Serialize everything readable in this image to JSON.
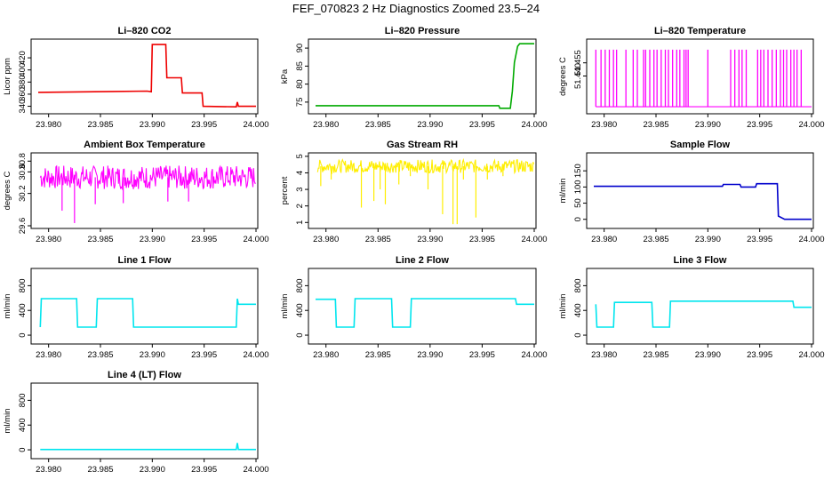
{
  "title": "FEF_070823  2 Hz Diagnostics Zoomed 23.5–24",
  "chart_data": [
    {
      "type": "line",
      "title": "Li–820 CO2",
      "ylabel": "Licor ppm",
      "color": "#ee0000",
      "xlim": [
        23.979,
        24.0
      ],
      "xticks": [
        "23.980",
        "23.985",
        "23.990",
        "23.995",
        "24.000"
      ],
      "ylim": [
        332,
        448
      ],
      "yticks": [
        "340",
        "360",
        "380",
        "400",
        "420"
      ],
      "ytick_values": [
        340,
        360,
        380,
        400,
        420
      ],
      "x": [
        23.979,
        23.9895,
        23.9899,
        23.99,
        23.9913,
        23.9914,
        23.9928,
        23.9929,
        23.9948,
        23.9949,
        23.9981,
        23.9982,
        23.9983,
        24.0
      ],
      "y": [
        363,
        365,
        364,
        442,
        442,
        387,
        387,
        362,
        362,
        340,
        339,
        347,
        340,
        340
      ]
    },
    {
      "type": "line",
      "title": "Li–820 Pressure",
      "ylabel": "kPa",
      "color": "#00aa00",
      "xlim": [
        23.979,
        24.0
      ],
      "xticks": [
        "23.980",
        "23.985",
        "23.990",
        "23.995",
        "24.000"
      ],
      "ylim": [
        72.5,
        92
      ],
      "yticks": [
        "75",
        "80",
        "85",
        "90"
      ],
      "ytick_values": [
        75,
        80,
        85,
        90
      ],
      "x": [
        23.979,
        23.9966,
        23.9967,
        23.9977,
        23.9979,
        23.9981,
        23.9984,
        23.9986,
        24.0
      ],
      "y": [
        74.0,
        74.0,
        73.3,
        73.3,
        78.0,
        86.0,
        90.5,
        91.2,
        91.2
      ]
    },
    {
      "type": "line",
      "title": "Li–820 Temperature",
      "ylabel": "degrees C",
      "color": "#ff00ff",
      "xlim": [
        23.979,
        24.0
      ],
      "xticks": [
        "23.980",
        "23.985",
        "23.990",
        "23.995",
        "24.000"
      ],
      "ylim": [
        51.4,
        51.48
      ],
      "yticks": [
        "51.440",
        "51.455"
      ],
      "ytick_values": [
        51.44,
        51.455
      ],
      "low": 51.405,
      "high": 51.47,
      "spikes": [
        23.9792,
        23.9797,
        23.9801,
        23.9805,
        23.9809,
        23.9812,
        23.9821,
        23.9828,
        23.9832,
        23.9838,
        23.984,
        23.9844,
        23.9848,
        23.9851,
        23.9855,
        23.9859,
        23.9862,
        23.9866,
        23.987,
        23.9873,
        23.9877,
        23.9879,
        23.9881,
        23.99,
        23.9922,
        23.9926,
        23.993,
        23.9933,
        23.9937,
        23.9948,
        23.9951,
        23.9954,
        23.9958,
        23.9962,
        23.9966,
        23.997,
        23.9973,
        23.9976,
        23.998,
        23.9983,
        23.9986,
        23.999
      ]
    },
    {
      "type": "line",
      "title": "Ambient Box Temperature",
      "ylabel": "degrees C",
      "color": "#ff00ff",
      "xlim": [
        23.979,
        24.0
      ],
      "xticks": [
        "23.980",
        "23.985",
        "23.990",
        "23.995",
        "24.000"
      ],
      "ylim": [
        29.6,
        30.92
      ],
      "yticks": [
        "29.6",
        "30.2",
        "30.6"
      ],
      "ytick_values": [
        29.6,
        30.2,
        30.6
      ],
      "extra_tick_label": "30.8",
      "band": [
        30.28,
        30.72
      ],
      "dips": [
        [
          23.9813,
          29.88
        ],
        [
          23.9825,
          29.65
        ],
        [
          23.9845,
          30.0
        ],
        [
          23.9872,
          30.02
        ],
        [
          23.9915,
          30.05
        ],
        [
          23.9935,
          30.05
        ]
      ]
    },
    {
      "type": "line",
      "title": "Gas Stream RH",
      "ylabel": "percent",
      "color": "#ffee00",
      "xlim": [
        23.979,
        24.0
      ],
      "xticks": [
        "23.980",
        "23.985",
        "23.990",
        "23.995",
        "24.000"
      ],
      "ylim": [
        0.8,
        5.1
      ],
      "yticks": [
        "1",
        "2",
        "3",
        "4",
        "5"
      ],
      "ytick_values": [
        1,
        2,
        3,
        4,
        5
      ],
      "band": [
        4.0,
        4.8
      ],
      "dips": [
        [
          23.9795,
          3.2
        ],
        [
          23.9805,
          3.6
        ],
        [
          23.9834,
          1.9
        ],
        [
          23.9846,
          2.3
        ],
        [
          23.9852,
          3.0
        ],
        [
          23.9857,
          2.1
        ],
        [
          23.987,
          3.3
        ],
        [
          23.9881,
          3.8
        ],
        [
          23.9898,
          3.0
        ],
        [
          23.9912,
          1.5
        ],
        [
          23.9922,
          0.9
        ],
        [
          23.9926,
          0.9
        ],
        [
          23.9932,
          3.6
        ],
        [
          23.9944,
          1.3
        ],
        [
          23.9955,
          3.6
        ],
        [
          23.997,
          3.8
        ]
      ]
    },
    {
      "type": "line",
      "title": "Sample Flow",
      "ylabel": "ml/min",
      "color": "#0000cc",
      "xlim": [
        23.979,
        24.0
      ],
      "xticks": [
        "23.980",
        "23.985",
        "23.990",
        "23.995",
        "24.000"
      ],
      "ylim": [
        -20,
        200
      ],
      "yticks": [
        "0",
        "50",
        "100",
        "150"
      ],
      "ytick_values": [
        0,
        50,
        100,
        150
      ],
      "x": [
        23.979,
        23.9914,
        23.9915,
        23.9931,
        23.9932,
        23.9946,
        23.9947,
        23.9967,
        23.9968,
        23.9974,
        23.9975,
        24.0
      ],
      "y": [
        102,
        102,
        108,
        108,
        100,
        100,
        110,
        110,
        10,
        0,
        0,
        0
      ]
    },
    {
      "type": "line",
      "title": "Line 1 Flow",
      "ylabel": "ml/min",
      "color": "#00e5ee",
      "xlim": [
        23.979,
        24.0
      ],
      "xticks": [
        "23.980",
        "23.985",
        "23.990",
        "23.995",
        "24.000"
      ],
      "ylim": [
        -100,
        1050
      ],
      "yticks": [
        "0",
        "400",
        "800"
      ],
      "ytick_values": [
        0,
        400,
        800
      ],
      "x": [
        23.9792,
        23.9793,
        23.9827,
        23.9828,
        23.9846,
        23.9847,
        23.9881,
        23.9882,
        23.9981,
        23.9982,
        23.9983,
        24.0
      ],
      "y": [
        130,
        590,
        590,
        130,
        130,
        590,
        590,
        130,
        130,
        590,
        500,
        500
      ]
    },
    {
      "type": "line",
      "title": "Line 2 Flow",
      "ylabel": "ml/min",
      "color": "#00e5ee",
      "xlim": [
        23.979,
        24.0
      ],
      "xticks": [
        "23.980",
        "23.985",
        "23.990",
        "23.995",
        "24.000"
      ],
      "ylim": [
        -100,
        1050
      ],
      "yticks": [
        "0",
        "400",
        "800"
      ],
      "ytick_values": [
        0,
        400,
        800
      ],
      "x": [
        23.979,
        23.9809,
        23.981,
        23.9827,
        23.9828,
        23.9863,
        23.9864,
        23.9881,
        23.9882,
        23.9982,
        23.9983,
        24.0
      ],
      "y": [
        580,
        580,
        130,
        130,
        590,
        590,
        130,
        130,
        590,
        590,
        500,
        500
      ]
    },
    {
      "type": "line",
      "title": "Line 3 Flow",
      "ylabel": "ml/min",
      "color": "#00e5ee",
      "xlim": [
        23.979,
        24.0
      ],
      "xticks": [
        "23.980",
        "23.985",
        "23.990",
        "23.995",
        "24.000"
      ],
      "ylim": [
        -100,
        1050
      ],
      "yticks": [
        "0",
        "400",
        "800"
      ],
      "ytick_values": [
        0,
        400,
        800
      ],
      "x": [
        23.9792,
        23.9793,
        23.9809,
        23.981,
        23.9846,
        23.9847,
        23.9863,
        23.9864,
        23.9982,
        23.9983,
        24.0
      ],
      "y": [
        500,
        130,
        130,
        530,
        530,
        130,
        130,
        550,
        550,
        450,
        450
      ]
    },
    {
      "type": "line",
      "title": "Line 4 (LT) Flow",
      "ylabel": "ml/min",
      "color": "#00e5ee",
      "xlim": [
        23.979,
        24.0
      ],
      "xticks": [
        "23.980",
        "23.985",
        "23.990",
        "23.995",
        "24.000"
      ],
      "ylim": [
        -100,
        1050
      ],
      "yticks": [
        "0",
        "400",
        "800"
      ],
      "ytick_values": [
        0,
        400,
        800
      ],
      "x": [
        23.9792,
        23.9981,
        23.9982,
        23.9983,
        24.0
      ],
      "y": [
        5,
        5,
        110,
        5,
        5
      ]
    }
  ]
}
